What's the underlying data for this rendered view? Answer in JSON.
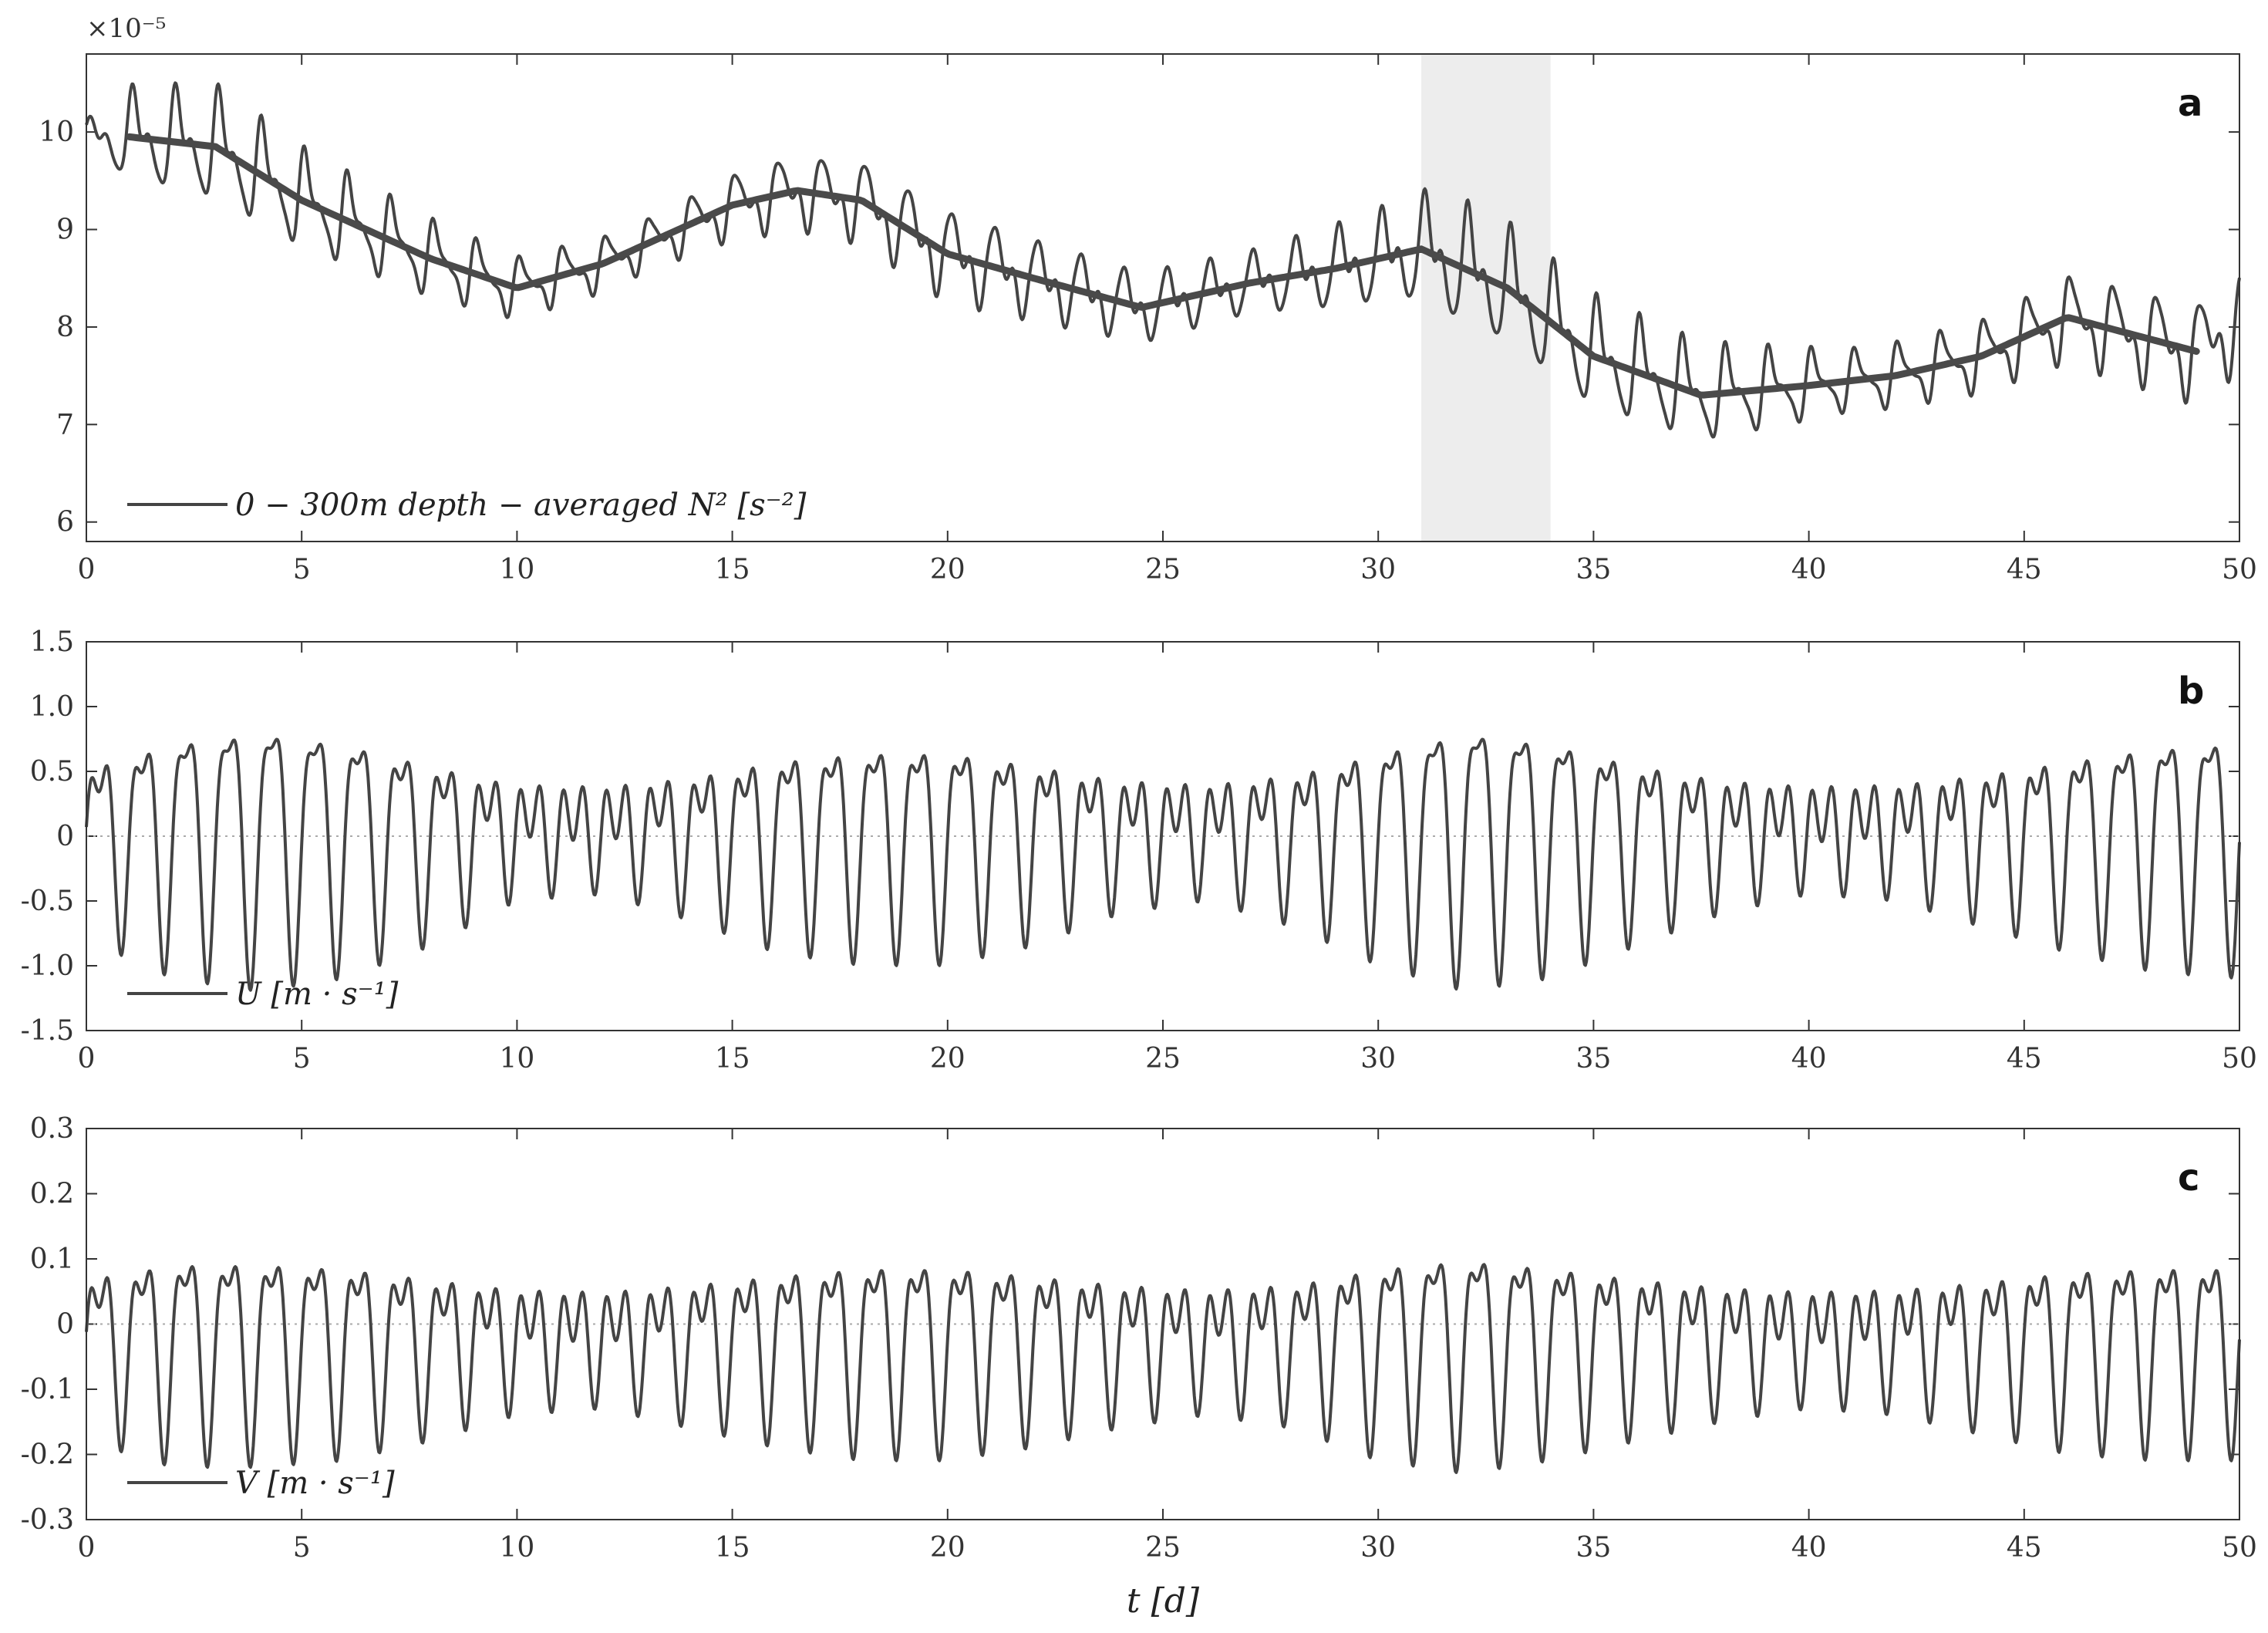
{
  "chart_data": [
    {
      "type": "line",
      "panel_label": "a",
      "exponent_label": "×10⁻⁵",
      "legend": "0 − 300m depth − averaged N² [s⁻²]",
      "xlim": [
        0,
        50
      ],
      "ylim": [
        5.8,
        10.8
      ],
      "xticks": [
        0,
        5,
        10,
        15,
        20,
        25,
        30,
        35,
        40,
        45,
        50
      ],
      "yticks": [
        6,
        7,
        8,
        9,
        10
      ],
      "shaded_interval": [
        31,
        34
      ],
      "smoothed_trend": {
        "x": [
          1,
          3,
          5,
          8,
          10,
          12,
          15,
          16.5,
          18,
          20,
          22,
          24.5,
          27,
          29,
          31,
          33,
          35,
          37.5,
          40,
          42,
          44,
          46,
          49
        ],
        "y": [
          9.95,
          9.85,
          9.3,
          8.7,
          8.4,
          8.65,
          9.25,
          9.4,
          9.3,
          8.75,
          8.5,
          8.2,
          8.45,
          8.6,
          8.8,
          8.4,
          7.7,
          7.3,
          7.4,
          7.5,
          7.7,
          8.1,
          7.75
        ]
      },
      "raw_signal_model": {
        "baseline_x": [
          0,
          1,
          3,
          5,
          8,
          10,
          12,
          15,
          16.5,
          18,
          20,
          22,
          24.5,
          27,
          29,
          31,
          33,
          35,
          37.5,
          40,
          42,
          44,
          46,
          49,
          50
        ],
        "baseline_y": [
          9.95,
          9.95,
          9.85,
          9.3,
          8.7,
          8.4,
          8.65,
          9.25,
          9.4,
          9.3,
          8.75,
          8.5,
          8.2,
          8.45,
          8.6,
          8.8,
          8.4,
          7.7,
          7.3,
          7.4,
          7.5,
          7.7,
          8.1,
          7.75,
          8.1
        ],
        "amplitude_x": [
          0,
          1,
          3,
          6,
          10,
          13,
          16,
          20,
          24,
          27,
          30,
          32,
          35,
          38,
          41,
          44,
          47,
          50
        ],
        "amplitude_y": [
          0.15,
          0.45,
          0.55,
          0.45,
          0.3,
          0.25,
          0.35,
          0.45,
          0.35,
          0.3,
          0.45,
          0.6,
          0.55,
          0.45,
          0.3,
          0.35,
          0.45,
          0.5
        ]
      }
    },
    {
      "type": "line",
      "panel_label": "b",
      "legend": "U [m · s⁻¹]",
      "xlim": [
        0,
        50
      ],
      "ylim": [
        -1.5,
        1.5
      ],
      "xticks": [
        0,
        5,
        10,
        15,
        20,
        25,
        30,
        35,
        40,
        45,
        50
      ],
      "yticks": [
        -1.5,
        -1.0,
        -0.5,
        0,
        0.5,
        1.0,
        1.5
      ],
      "ytick_labels": [
        "-1.5",
        "-1.0",
        "-0.5",
        "0",
        "0.5",
        "1.0",
        "1.5"
      ],
      "zero_line": true,
      "tidal_signal_model": {
        "diurnal_amplitude_x": [
          0,
          2,
          4,
          6,
          8,
          10,
          12,
          14,
          16,
          18,
          20,
          22,
          24,
          26,
          28,
          30,
          32,
          34,
          36,
          38,
          40,
          42,
          44,
          46,
          48,
          50
        ],
        "diurnal_amplitude_y": [
          0.55,
          0.85,
          0.95,
          0.85,
          0.6,
          0.25,
          0.2,
          0.4,
          0.65,
          0.75,
          0.75,
          0.6,
          0.35,
          0.25,
          0.45,
          0.75,
          0.95,
          0.85,
          0.6,
          0.35,
          0.2,
          0.25,
          0.45,
          0.65,
          0.8,
          0.85
        ],
        "semidiurnal_amplitude": 0.3,
        "mean": 0.05
      }
    },
    {
      "type": "line",
      "panel_label": "c",
      "legend": "V [m · s⁻¹]",
      "xlabel": "t [d]",
      "xlim": [
        0,
        50
      ],
      "ylim": [
        -0.3,
        0.3
      ],
      "xticks": [
        0,
        5,
        10,
        15,
        20,
        25,
        30,
        35,
        40,
        45,
        50
      ],
      "yticks": [
        -0.3,
        -0.2,
        -0.1,
        0,
        0.1,
        0.2,
        0.3
      ],
      "ytick_labels": [
        "-0.3",
        "-0.2",
        "-0.1",
        "0",
        "0.1",
        "0.2",
        "0.3"
      ],
      "zero_line": true,
      "tidal_signal_model": {
        "diurnal_amplitude_x": [
          0,
          2,
          4,
          6,
          8,
          10,
          12,
          14,
          16,
          18,
          20,
          22,
          24,
          26,
          28,
          30,
          32,
          34,
          36,
          38,
          40,
          42,
          44,
          46,
          48,
          50
        ],
        "diurnal_amplitude_y": [
          0.1,
          0.14,
          0.14,
          0.13,
          0.1,
          0.06,
          0.05,
          0.08,
          0.11,
          0.13,
          0.13,
          0.11,
          0.08,
          0.06,
          0.08,
          0.13,
          0.15,
          0.13,
          0.1,
          0.07,
          0.05,
          0.06,
          0.09,
          0.12,
          0.13,
          0.13
        ],
        "semidiurnal_amplitude": 0.06,
        "mean": -0.02
      }
    }
  ]
}
